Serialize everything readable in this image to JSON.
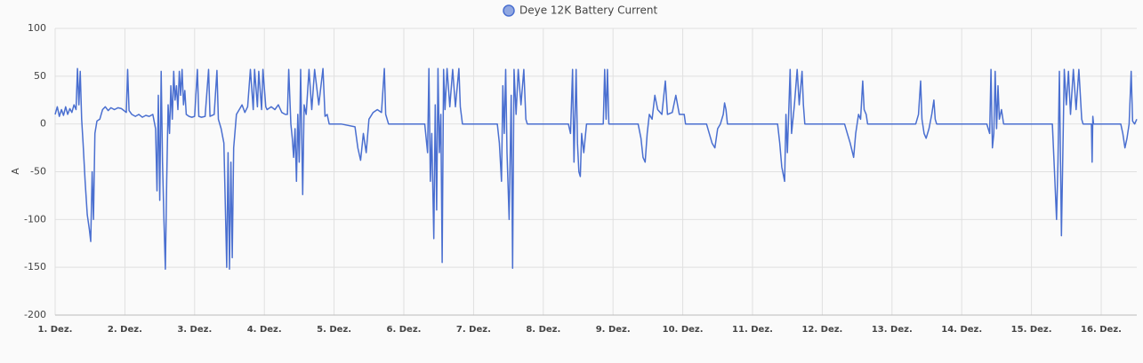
{
  "chart_data": {
    "type": "line",
    "ylabel": "A",
    "ylim": [
      -200,
      100
    ],
    "yticks": [
      -200,
      -150,
      -100,
      -50,
      0,
      50,
      100
    ],
    "xlim": [
      1,
      16.51
    ],
    "xticks": [
      {
        "value": 1,
        "label": "1. Dez."
      },
      {
        "value": 2,
        "label": "2. Dez."
      },
      {
        "value": 3,
        "label": "3. Dez."
      },
      {
        "value": 4,
        "label": "4. Dez."
      },
      {
        "value": 5,
        "label": "5. Dez."
      },
      {
        "value": 6,
        "label": "6. Dez."
      },
      {
        "value": 7,
        "label": "7. Dez."
      },
      {
        "value": 8,
        "label": "8. Dez."
      },
      {
        "value": 9,
        "label": "9. Dez."
      },
      {
        "value": 10,
        "label": "10. Dez."
      },
      {
        "value": 11,
        "label": "11. Dez."
      },
      {
        "value": 12,
        "label": "12. Dez."
      },
      {
        "value": 13,
        "label": "13. Dez."
      },
      {
        "value": 14,
        "label": "14. Dez."
      },
      {
        "value": 15,
        "label": "15. Dez."
      },
      {
        "value": 16,
        "label": "16. Dez."
      }
    ],
    "grid": true,
    "legend": "top",
    "x": [
      1,
      1.03,
      1.06,
      1.09,
      1.12,
      1.15,
      1.18,
      1.21,
      1.24,
      1.27,
      1.3,
      1.32,
      1.34,
      1.36,
      1.38,
      1.4,
      1.43,
      1.46,
      1.49,
      1.51,
      1.53,
      1.55,
      1.57,
      1.6,
      1.64,
      1.68,
      1.72,
      1.76,
      1.8,
      1.85,
      1.9,
      1.95,
      2.02,
      2.04,
      2.06,
      2.1,
      2.15,
      2.2,
      2.25,
      2.3,
      2.35,
      2.4,
      2.44,
      2.46,
      2.48,
      2.5,
      2.52,
      2.54,
      2.56,
      2.58,
      2.6,
      2.62,
      2.64,
      2.66,
      2.68,
      2.7,
      2.72,
      2.74,
      2.76,
      2.78,
      2.8,
      2.82,
      2.84,
      2.86,
      2.88,
      2.92,
      2.96,
      3,
      3.04,
      3.06,
      3.1,
      3.15,
      3.2,
      3.22,
      3.28,
      3.32,
      3.34,
      3.38,
      3.42,
      3.46,
      3.48,
      3.5,
      3.52,
      3.54,
      3.56,
      3.6,
      3.64,
      3.68,
      3.72,
      3.76,
      3.8,
      3.84,
      3.86,
      3.9,
      3.92,
      3.96,
      3.98,
      4.02,
      4.04,
      4.1,
      4.15,
      4.2,
      4.25,
      4.3,
      4.33,
      4.35,
      4.38,
      4.4,
      4.42,
      4.44,
      4.46,
      4.48,
      4.5,
      4.52,
      4.55,
      4.57,
      4.6,
      4.64,
      4.68,
      4.72,
      4.78,
      4.84,
      4.87,
      4.9,
      4.93,
      5.1,
      5.3,
      5.34,
      5.38,
      5.42,
      5.46,
      5.5,
      5.56,
      5.62,
      5.68,
      5.72,
      5.74,
      5.78,
      6,
      6.3,
      6.34,
      6.36,
      6.38,
      6.4,
      6.43,
      6.45,
      6.47,
      6.49,
      6.51,
      6.53,
      6.55,
      6.57,
      6.59,
      6.62,
      6.66,
      6.7,
      6.74,
      6.79,
      6.81,
      6.84,
      7,
      7.34,
      7.37,
      7.4,
      7.42,
      7.44,
      7.46,
      7.48,
      7.51,
      7.54,
      7.56,
      7.58,
      7.61,
      7.64,
      7.68,
      7.72,
      7.75,
      7.77,
      8,
      8.36,
      8.39,
      8.42,
      8.44,
      8.47,
      8.49,
      8.51,
      8.53,
      8.55,
      8.58,
      8.62,
      8.86,
      8.88,
      8.9,
      8.92,
      8.94,
      9,
      9.36,
      9.4,
      9.43,
      9.46,
      9.49,
      9.52,
      9.56,
      9.6,
      9.64,
      9.7,
      9.75,
      9.78,
      9.85,
      9.9,
      9.95,
      10.02,
      10.04,
      10.34,
      10.38,
      10.42,
      10.46,
      10.5,
      10.54,
      10.58,
      10.6,
      10.62,
      10.64,
      11,
      11.36,
      11.39,
      11.42,
      11.46,
      11.48,
      11.5,
      11.54,
      11.56,
      11.6,
      11.64,
      11.67,
      11.71,
      11.73,
      11.75,
      12,
      12.32,
      12.36,
      12.4,
      12.45,
      12.48,
      12.52,
      12.55,
      12.58,
      12.6,
      12.63,
      12.65,
      13,
      13.34,
      13.38,
      13.41,
      13.43,
      13.46,
      13.49,
      13.53,
      13.57,
      13.6,
      13.62,
      13.64,
      14,
      14.36,
      14.4,
      14.42,
      14.44,
      14.46,
      14.48,
      14.5,
      14.52,
      14.54,
      14.57,
      14.6,
      15,
      15.3,
      15.33,
      15.36,
      15.38,
      15.4,
      15.43,
      15.45,
      15.47,
      15.5,
      15.53,
      15.56,
      15.6,
      15.64,
      15.68,
      15.72,
      15.74,
      15.86,
      15.87,
      15.88,
      15.89,
      16,
      16.28,
      16.31,
      16.34,
      16.37,
      16.4,
      16.43,
      16.45,
      16.48,
      16.51
    ],
    "series": [
      {
        "name": "Deye 12K Battery Current",
        "color": "#4a6fd0",
        "values": [
          10,
          18,
          8,
          15,
          9,
          18,
          10,
          16,
          12,
          20,
          15,
          58,
          20,
          55,
          5,
          -20,
          -60,
          -95,
          -110,
          -123,
          -50,
          -100,
          -10,
          3,
          5,
          15,
          18,
          14,
          17,
          15,
          17,
          16,
          12,
          57,
          14,
          10,
          8,
          10,
          7,
          9,
          8,
          10,
          -5,
          -70,
          30,
          -80,
          55,
          -40,
          -100,
          -152,
          -60,
          20,
          -10,
          40,
          5,
          55,
          25,
          40,
          15,
          55,
          30,
          57,
          20,
          35,
          10,
          8,
          7,
          8,
          57,
          8,
          7,
          8,
          57,
          8,
          10,
          56,
          5,
          -5,
          -20,
          -150,
          -30,
          -152,
          -40,
          -140,
          -25,
          10,
          15,
          20,
          12,
          18,
          57,
          15,
          57,
          18,
          55,
          15,
          57,
          18,
          15,
          18,
          15,
          20,
          12,
          10,
          10,
          57,
          0,
          -15,
          -35,
          -5,
          -60,
          10,
          -40,
          57,
          -74,
          20,
          10,
          57,
          15,
          57,
          20,
          58,
          8,
          10,
          0,
          0,
          -3,
          -25,
          -38,
          -10,
          -30,
          5,
          12,
          15,
          12,
          58,
          10,
          0,
          0,
          0,
          -30,
          58,
          -60,
          -10,
          -120,
          20,
          -90,
          58,
          -30,
          10,
          -145,
          57,
          15,
          58,
          18,
          57,
          18,
          58,
          18,
          0,
          0,
          0,
          -20,
          -60,
          40,
          -10,
          57,
          -30,
          -100,
          30,
          -151,
          57,
          10,
          57,
          20,
          57,
          5,
          0,
          0,
          0,
          -10,
          57,
          -40,
          57,
          -20,
          -50,
          -55,
          -10,
          -30,
          0,
          0,
          57,
          5,
          57,
          0,
          0,
          0,
          -15,
          -35,
          -40,
          -10,
          10,
          5,
          30,
          15,
          10,
          45,
          10,
          12,
          30,
          10,
          10,
          0,
          0,
          -10,
          -20,
          -25,
          -5,
          0,
          10,
          22,
          15,
          0,
          0,
          0,
          -20,
          -45,
          -60,
          10,
          -30,
          57,
          -10,
          20,
          57,
          20,
          55,
          20,
          0,
          0,
          0,
          -10,
          -20,
          -35,
          -10,
          10,
          5,
          45,
          15,
          10,
          0,
          0,
          0,
          10,
          45,
          5,
          -10,
          -15,
          -5,
          10,
          25,
          5,
          0,
          0,
          0,
          -10,
          57,
          -25,
          -10,
          55,
          -5,
          40,
          5,
          15,
          0,
          0,
          0,
          -50,
          -100,
          -40,
          55,
          -117,
          -30,
          57,
          20,
          55,
          10,
          57,
          15,
          57,
          5,
          0,
          0,
          -40,
          8,
          0,
          0,
          0,
          -10,
          -25,
          -15,
          0,
          55,
          3,
          0,
          5
        ]
      }
    ]
  }
}
